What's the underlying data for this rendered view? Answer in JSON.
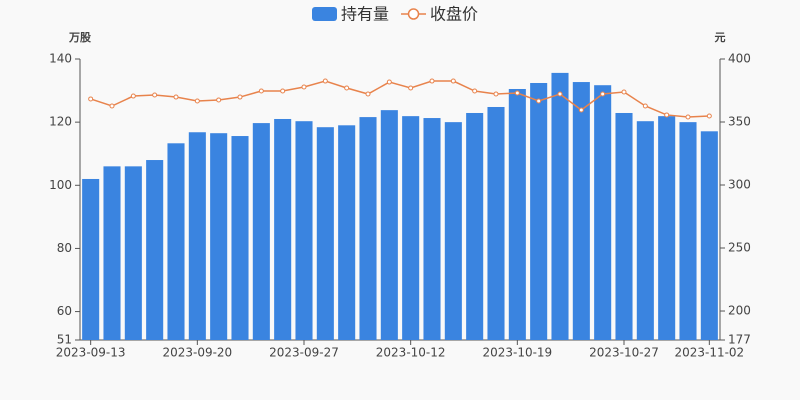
{
  "chart_data": {
    "type": "bar+line",
    "categories": [
      "2023-09-13",
      null,
      null,
      null,
      null,
      "2023-09-20",
      null,
      null,
      null,
      null,
      "2023-09-27",
      null,
      null,
      null,
      null,
      "2023-10-12",
      null,
      null,
      null,
      null,
      "2023-10-19",
      null,
      null,
      null,
      null,
      "2023-10-27",
      null,
      null,
      null,
      "2023-11-02"
    ],
    "series": [
      {
        "name": "持有量",
        "type": "bar",
        "color": "#3a84e0",
        "axis": "y",
        "values": [
          102,
          106,
          106,
          108,
          113.3,
          116.8,
          116.5,
          115.6,
          119.7,
          121,
          120.3,
          118.4,
          119,
          121.6,
          123.8,
          121.9,
          121.3,
          120,
          122.9,
          124.8,
          130.5,
          132.4,
          135.6,
          132.7,
          131.7,
          122.9,
          120.3,
          121.9,
          120,
          117.1
        ]
      },
      {
        "name": "收盘价",
        "type": "line",
        "color": "#e8834c",
        "axis": "y2",
        "values": [
          368.3,
          362.7,
          370.6,
          371.4,
          369.8,
          366.7,
          367.5,
          369.8,
          374.6,
          374.6,
          377.8,
          382.5,
          377,
          372.2,
          381.7,
          377,
          382.5,
          382.5,
          374.6,
          372.2,
          373,
          366.7,
          372.2,
          359.5,
          372.2,
          373.8,
          362.7,
          355.6,
          354,
          354.8
        ]
      }
    ],
    "ylabel": "万股",
    "y2label": "元",
    "ylim": [
      51,
      140
    ],
    "yticks": [
      51,
      60,
      80,
      100,
      120,
      140
    ],
    "y2lim": [
      177,
      400
    ],
    "y2ticks": [
      177,
      200,
      250,
      300,
      350,
      400
    ],
    "legend": "top"
  }
}
